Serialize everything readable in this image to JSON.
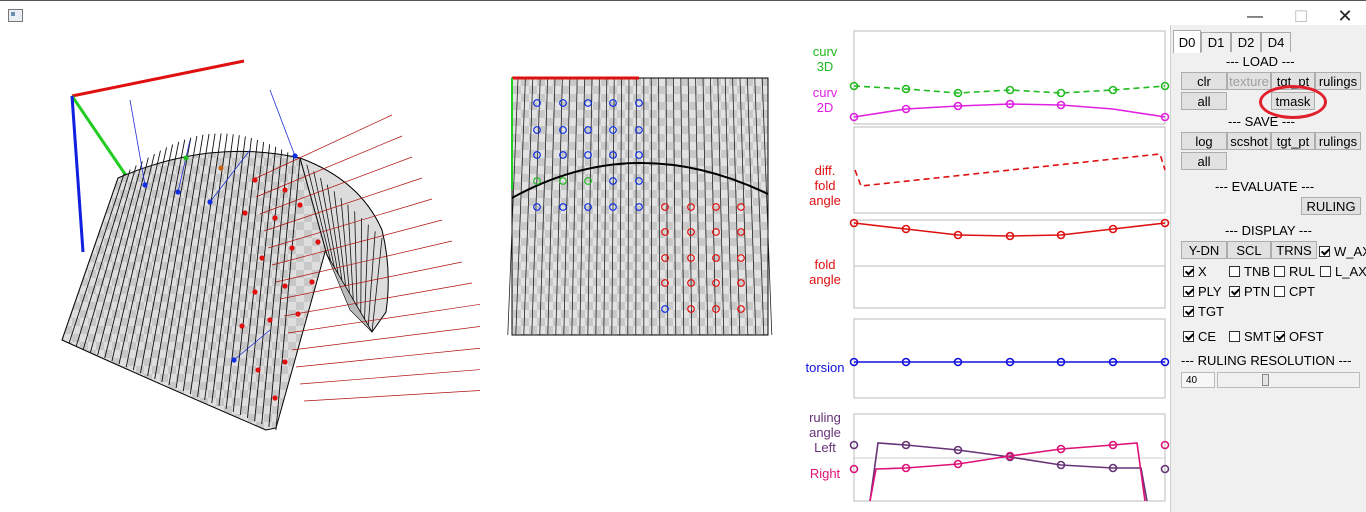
{
  "window": {
    "min_glyph": "—",
    "max_glyph": "☐",
    "close_glyph": "✕"
  },
  "graphs": {
    "curv3d": "curv\n3D",
    "curv2d": "curv\n2D",
    "diff_fold_angle": "diff.\nfold\nangle",
    "fold_angle": "fold\nangle",
    "torsion": "torsion",
    "ruling_angle_left": "ruling\nangle\nLeft",
    "ruling_angle_right": "Right"
  },
  "colors": {
    "curv3d": "#22bb22",
    "curv2d": "#e020e0",
    "fold": "#dd1111",
    "torsion": "#1111dd",
    "ruling_left": "#663377",
    "ruling_right": "#dd1177",
    "highlight": "#e0202c"
  },
  "panel": {
    "tabs": [
      "D0",
      "D1",
      "D2",
      "D4"
    ],
    "active_tab": "D0",
    "load_header": "--- LOAD ---",
    "load_buttons": {
      "clr": "clr",
      "texture": "texture",
      "tgt_pt": "tgt_pt",
      "rulings": "rulings",
      "all": "all",
      "tmask": "tmask"
    },
    "save_header": "--- SAVE ---",
    "save_buttons": {
      "log": "log",
      "scshot": "scshot",
      "tgt_pt": "tgt_pt",
      "rulings": "rulings",
      "all": "all"
    },
    "evaluate_header": "--- EVALUATE ---",
    "evaluate_ruling": "RULING",
    "display_header": "--- DISPLAY ---",
    "display_buttons": {
      "ydn": "Y-DN",
      "scl": "SCL",
      "trns": "TRNS"
    },
    "checks": {
      "w_axis": {
        "label": "W_AXIS",
        "checked": true
      },
      "x": {
        "label": "X",
        "checked": true
      },
      "tnb": {
        "label": "TNB",
        "checked": false
      },
      "rul": {
        "label": "RUL",
        "checked": false
      },
      "l_axis": {
        "label": "L_AXIS",
        "checked": false
      },
      "ply": {
        "label": "PLY",
        "checked": true
      },
      "ptn": {
        "label": "PTN",
        "checked": true
      },
      "cpt": {
        "label": "CPT",
        "checked": false
      },
      "tgt": {
        "label": "TGT",
        "checked": true
      },
      "ce": {
        "label": "CE",
        "checked": true
      },
      "smt": {
        "label": "SMT",
        "checked": false
      },
      "ofst": {
        "label": "OFST",
        "checked": true
      }
    },
    "ruling_res_header": "--- RULING RESOLUTION ---",
    "ruling_res_value": "40",
    "ruling_res_fraction": 0.33
  }
}
